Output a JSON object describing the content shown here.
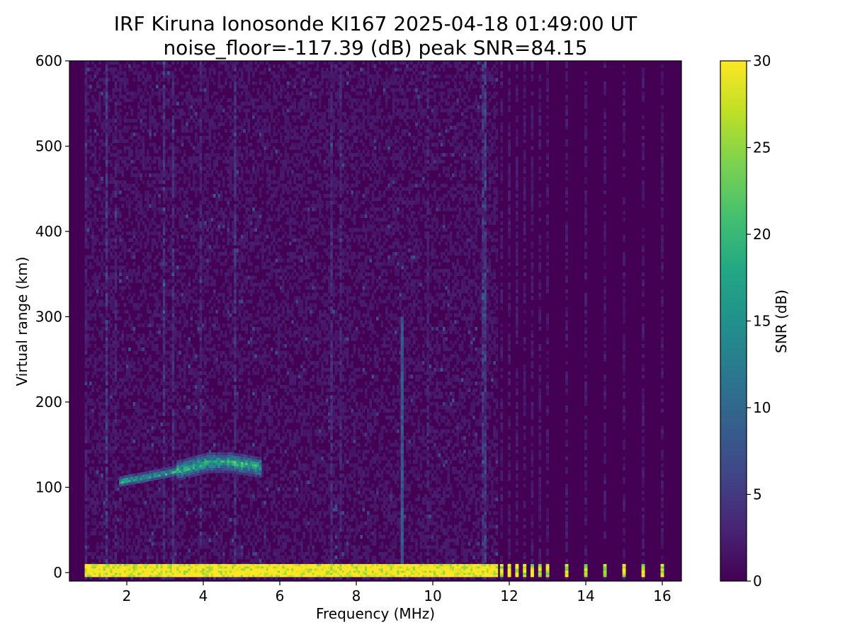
{
  "chart_data": {
    "type": "heatmap",
    "title": "IRF Kiruna Ionosonde KI167 2025-04-18 01:49:00  UT",
    "subtitle": "noise_floor=-117.39 (dB) peak SNR=84.15",
    "xlabel": "Frequency (MHz)",
    "ylabel": "Virtual range (km)",
    "xlim": [
      0.5,
      16.5
    ],
    "ylim": [
      -10,
      600
    ],
    "xticks": [
      "2",
      "4",
      "6",
      "8",
      "10",
      "12",
      "14",
      "16"
    ],
    "yticks": [
      "0",
      "100",
      "200",
      "300",
      "400",
      "500",
      "600"
    ],
    "colorbar": {
      "label": "SNR (dB)",
      "range": [
        0,
        30
      ],
      "ticks": [
        "0",
        "5",
        "10",
        "15",
        "20",
        "25",
        "30"
      ],
      "colormap": "viridis"
    },
    "sweep_range_mhz": [
      0.9,
      16.4
    ],
    "features": [
      {
        "description": "ground/direct-wave band",
        "range_km": [
          -5,
          8
        ],
        "freq_mhz": [
          0.9,
          11.7
        ],
        "snr_db": 30
      },
      {
        "description": "discrete frequency samples",
        "range_km": [
          -5,
          8
        ],
        "freq_mhz": [
          11.8,
          12.0,
          12.2,
          12.4,
          12.6,
          12.8,
          13.0,
          13.5,
          14.0,
          14.5,
          15.0,
          15.5,
          16.0
        ],
        "snr_db": 28
      },
      {
        "description": "E-layer echo trace",
        "points": [
          [
            1.8,
            105
          ],
          [
            2.4,
            110
          ],
          [
            3.0,
            115
          ],
          [
            3.6,
            122
          ],
          [
            4.1,
            128
          ],
          [
            4.7,
            128
          ],
          [
            5.5,
            122
          ]
        ],
        "snr_db": 22
      },
      {
        "description": "interference line",
        "freq_mhz": 9.2,
        "range_km": [
          0,
          300
        ],
        "snr_db": 8
      }
    ]
  }
}
